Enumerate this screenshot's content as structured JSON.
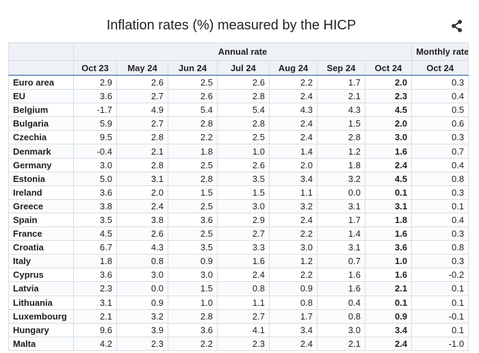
{
  "header": {
    "title": "Inflation rates (%) measured by the HICP"
  },
  "table": {
    "groups": [
      "Annual rate",
      "Monthly rate"
    ],
    "columns": [
      "Oct 23",
      "May 24",
      "Jun 24",
      "Jul 24",
      "Aug 24",
      "Sep 24",
      "Oct 24",
      "Oct 24"
    ],
    "rows": [
      [
        "Euro area",
        "2.9",
        "2.6",
        "2.5",
        "2.6",
        "2.2",
        "1.7",
        "2.0",
        "0.3"
      ],
      [
        "EU",
        "3.6",
        "2.7",
        "2.6",
        "2.8",
        "2.4",
        "2.1",
        "2.3",
        "0.4"
      ],
      [
        "Belgium",
        "-1.7",
        "4.9",
        "5.4",
        "5.4",
        "4.3",
        "4.3",
        "4.5",
        "0.5"
      ],
      [
        "Bulgaria",
        "5.9",
        "2.7",
        "2.8",
        "2.8",
        "2.4",
        "1.5",
        "2.0",
        "0.6"
      ],
      [
        "Czechia",
        "9.5",
        "2.8",
        "2.2",
        "2.5",
        "2.4",
        "2.8",
        "3.0",
        "0.3"
      ],
      [
        "Denmark",
        "-0.4",
        "2.1",
        "1.8",
        "1.0",
        "1.4",
        "1.2",
        "1.6",
        "0.7"
      ],
      [
        "Germany",
        "3.0",
        "2.8",
        "2.5",
        "2.6",
        "2.0",
        "1.8",
        "2.4",
        "0.4"
      ],
      [
        "Estonia",
        "5.0",
        "3.1",
        "2.8",
        "3.5",
        "3.4",
        "3.2",
        "4.5",
        "0.8"
      ],
      [
        "Ireland",
        "3.6",
        "2.0",
        "1.5",
        "1.5",
        "1.1",
        "0.0",
        "0.1",
        "0.3"
      ],
      [
        "Greece",
        "3.8",
        "2.4",
        "2.5",
        "3.0",
        "3.2",
        "3.1",
        "3.1",
        "0.1"
      ],
      [
        "Spain",
        "3.5",
        "3.8",
        "3.6",
        "2.9",
        "2.4",
        "1.7",
        "1.8",
        "0.4"
      ],
      [
        "France",
        "4.5",
        "2.6",
        "2.5",
        "2.7",
        "2.2",
        "1.4",
        "1.6",
        "0.3"
      ],
      [
        "Croatia",
        "6.7",
        "4.3",
        "3.5",
        "3.3",
        "3.0",
        "3.1",
        "3.6",
        "0.8"
      ],
      [
        "Italy",
        "1.8",
        "0.8",
        "0.9",
        "1.6",
        "1.2",
        "0.7",
        "1.0",
        "0.3"
      ],
      [
        "Cyprus",
        "3.6",
        "3.0",
        "3.0",
        "2.4",
        "2.2",
        "1.6",
        "1.6",
        "-0.2"
      ],
      [
        "Latvia",
        "2.3",
        "0.0",
        "1.5",
        "0.8",
        "0.9",
        "1.6",
        "2.1",
        "0.1"
      ],
      [
        "Lithuania",
        "3.1",
        "0.9",
        "1.0",
        "1.1",
        "0.8",
        "0.4",
        "0.1",
        "0.1"
      ],
      [
        "Luxembourg",
        "2.1",
        "3.2",
        "2.8",
        "2.7",
        "1.7",
        "0.8",
        "0.9",
        "-0.1"
      ],
      [
        "Hungary",
        "9.6",
        "3.9",
        "3.6",
        "4.1",
        "3.4",
        "3.0",
        "3.4",
        "0.1"
      ],
      [
        "Malta",
        "4.2",
        "2.3",
        "2.2",
        "2.3",
        "2.4",
        "2.1",
        "2.4",
        "-1.0"
      ]
    ]
  }
}
